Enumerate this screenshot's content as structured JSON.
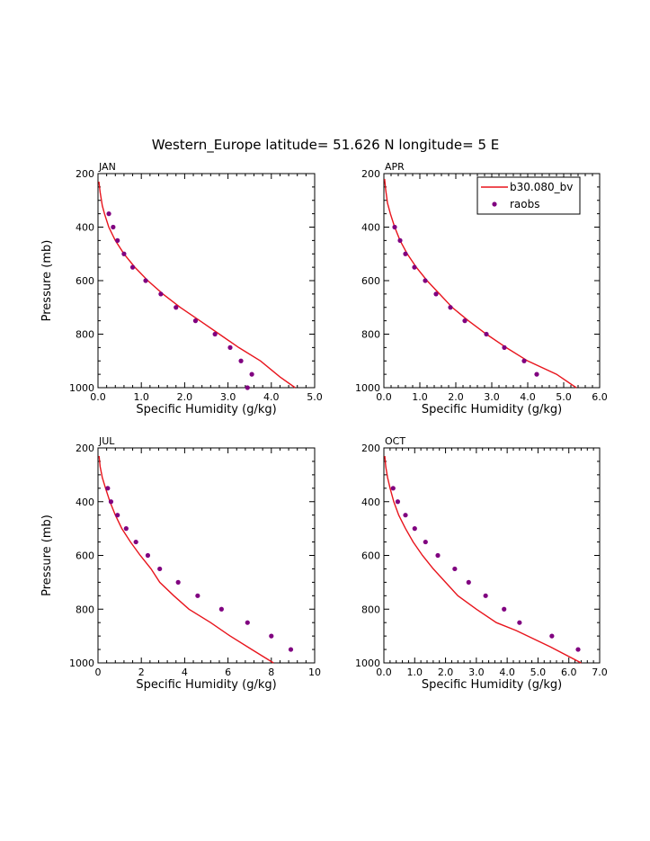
{
  "figure_title": "Western_Europe  latitude= 51.626 N longitude= 5 E",
  "legend": {
    "model_label": "b30.080_bv",
    "obs_label": "raobs",
    "location": "top-right of APR panel"
  },
  "colors": {
    "model_line": "#e8141c",
    "obs_marker": "#800080",
    "axis": "#000000"
  },
  "chart_data": [
    {
      "type": "line",
      "panel": "JAN",
      "xlabel": "Specific Humidity (g/kg)",
      "ylabel": "Pressure (mb)",
      "xlim": [
        0,
        5
      ],
      "ylim": [
        1000,
        200
      ],
      "x_ticks": [
        0,
        1,
        2,
        3,
        4,
        5
      ],
      "x_tick_labels": [
        "0.0",
        "1.0",
        "2.0",
        "3.0",
        "4.0",
        "5.0"
      ],
      "y_ticks": [
        200,
        400,
        600,
        800,
        1000
      ],
      "y_tick_labels": [
        "200",
        "400",
        "600",
        "800",
        "1000"
      ],
      "series": [
        {
          "name": "b30.080_bv",
          "type": "line",
          "x": [
            0.02,
            0.05,
            0.1,
            0.15,
            0.25,
            0.4,
            0.6,
            0.85,
            1.15,
            1.5,
            1.9,
            2.35,
            2.8,
            3.25,
            3.75,
            4.2,
            4.55
          ],
          "y": [
            230,
            270,
            320,
            350,
            400,
            450,
            500,
            550,
            600,
            650,
            700,
            750,
            800,
            850,
            900,
            960,
            1000
          ]
        },
        {
          "name": "raobs",
          "type": "scatter",
          "x": [
            0.25,
            0.35,
            0.45,
            0.6,
            0.8,
            1.1,
            1.45,
            1.8,
            2.25,
            2.7,
            3.05,
            3.3,
            3.55,
            3.45
          ],
          "y": [
            350,
            400,
            450,
            500,
            550,
            600,
            650,
            700,
            750,
            800,
            850,
            900,
            950,
            1000
          ]
        }
      ]
    },
    {
      "type": "line",
      "panel": "APR",
      "xlabel": "Specific Humidity (g/kg)",
      "ylabel": "",
      "xlim": [
        0,
        6
      ],
      "ylim": [
        1000,
        200
      ],
      "x_ticks": [
        0,
        1,
        2,
        3,
        4,
        5,
        6
      ],
      "x_tick_labels": [
        "0.0",
        "1.0",
        "2.0",
        "3.0",
        "4.0",
        "5.0",
        "6.0"
      ],
      "y_ticks": [
        200,
        400,
        600,
        800,
        1000
      ],
      "y_tick_labels": [
        "200",
        "400",
        "600",
        "800",
        "1000"
      ],
      "series": [
        {
          "name": "b30.080_bv",
          "type": "line",
          "x": [
            0.02,
            0.05,
            0.1,
            0.18,
            0.3,
            0.45,
            0.65,
            0.9,
            1.2,
            1.55,
            1.9,
            2.35,
            2.85,
            3.4,
            4.0,
            4.8,
            5.35
          ],
          "y": [
            220,
            260,
            310,
            350,
            400,
            450,
            500,
            550,
            600,
            650,
            700,
            750,
            800,
            850,
            900,
            950,
            1000
          ]
        },
        {
          "name": "raobs",
          "type": "scatter",
          "x": [
            0.3,
            0.45,
            0.6,
            0.85,
            1.15,
            1.45,
            1.85,
            2.25,
            2.85,
            3.35,
            3.9,
            4.25
          ],
          "y": [
            400,
            450,
            500,
            550,
            600,
            650,
            700,
            750,
            800,
            850,
            900,
            950
          ]
        }
      ]
    },
    {
      "type": "line",
      "panel": "JUL",
      "xlabel": "Specific Humidity (g/kg)",
      "ylabel": "Pressure (mb)",
      "xlim": [
        0,
        10
      ],
      "ylim": [
        1000,
        200
      ],
      "x_ticks": [
        0,
        2,
        4,
        6,
        8,
        10
      ],
      "x_tick_labels": [
        "0",
        "2",
        "4",
        "6",
        "8",
        "10"
      ],
      "y_ticks": [
        200,
        400,
        600,
        800,
        1000
      ],
      "y_tick_labels": [
        "200",
        "400",
        "600",
        "800",
        "1000"
      ],
      "series": [
        {
          "name": "b30.080_bv",
          "type": "line",
          "x": [
            0.05,
            0.1,
            0.2,
            0.35,
            0.55,
            0.8,
            1.1,
            1.5,
            1.95,
            2.45,
            2.85,
            3.5,
            4.2,
            5.2,
            6.1,
            7.1,
            8.1
          ],
          "y": [
            230,
            270,
            310,
            350,
            400,
            450,
            500,
            550,
            600,
            650,
            700,
            750,
            800,
            850,
            900,
            950,
            1000
          ]
        },
        {
          "name": "raobs",
          "type": "scatter",
          "x": [
            0.45,
            0.6,
            0.9,
            1.3,
            1.75,
            2.3,
            2.85,
            3.7,
            4.6,
            5.7,
            6.9,
            8.0,
            8.9
          ],
          "y": [
            350,
            400,
            450,
            500,
            550,
            600,
            650,
            700,
            750,
            800,
            850,
            900,
            950
          ]
        }
      ]
    },
    {
      "type": "line",
      "panel": "OCT",
      "xlabel": "Specific Humidity (g/kg)",
      "ylabel": "",
      "xlim": [
        0,
        7
      ],
      "ylim": [
        1000,
        200
      ],
      "x_ticks": [
        0,
        1,
        2,
        3,
        4,
        5,
        6,
        7
      ],
      "x_tick_labels": [
        "0.0",
        "1.0",
        "2.0",
        "3.0",
        "4.0",
        "5.0",
        "6.0",
        "7.0"
      ],
      "y_ticks": [
        200,
        400,
        600,
        800,
        1000
      ],
      "y_tick_labels": [
        "200",
        "400",
        "600",
        "800",
        "1000"
      ],
      "series": [
        {
          "name": "b30.080_bv",
          "type": "line",
          "x": [
            0.03,
            0.06,
            0.12,
            0.2,
            0.32,
            0.48,
            0.7,
            0.95,
            1.25,
            1.6,
            2.0,
            2.4,
            3.0,
            3.65,
            4.3,
            5.4,
            6.4
          ],
          "y": [
            230,
            270,
            310,
            350,
            400,
            450,
            500,
            550,
            600,
            650,
            700,
            750,
            800,
            850,
            880,
            940,
            1000
          ]
        },
        {
          "name": "raobs",
          "type": "scatter",
          "x": [
            0.3,
            0.45,
            0.7,
            1.0,
            1.35,
            1.75,
            2.3,
            2.75,
            3.3,
            3.9,
            4.4,
            5.45,
            6.3
          ],
          "y": [
            350,
            400,
            450,
            500,
            550,
            600,
            650,
            700,
            750,
            800,
            850,
            900,
            950
          ]
        }
      ]
    }
  ]
}
